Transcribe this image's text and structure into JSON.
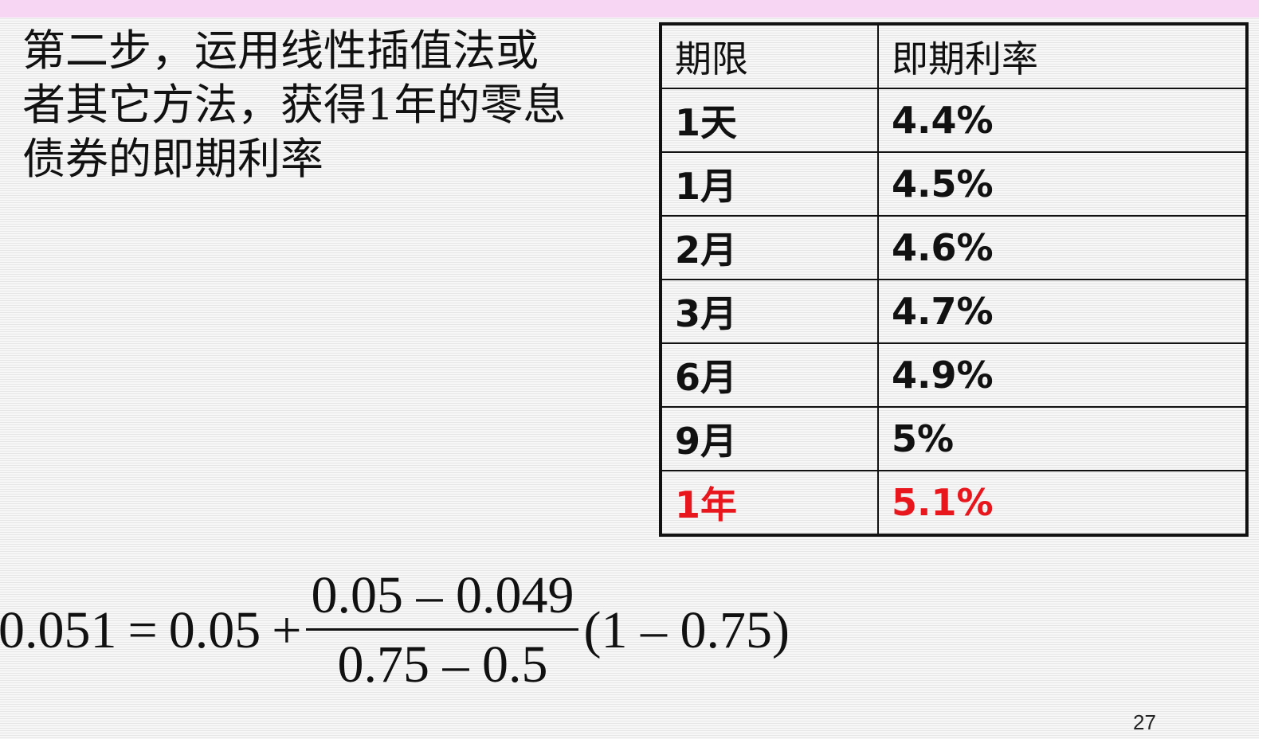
{
  "slide": {
    "intro_text": "第二步，运用线性插值法或\n者其它方法，获得1年的零息\n债券的即期利率",
    "page_number": "27"
  },
  "table": {
    "headers": [
      "期限",
      "即期利率"
    ],
    "rows": [
      [
        "1天",
        "4.4%"
      ],
      [
        "1月",
        "4.5%"
      ],
      [
        "2月",
        "4.6%"
      ],
      [
        "3月",
        "4.7%"
      ],
      [
        "6月",
        "4.9%"
      ],
      [
        "9月",
        "5%"
      ],
      [
        "1年",
        "5.1%"
      ]
    ],
    "highlight_color": "#e8161d"
  },
  "formula": {
    "lhs": "0.051",
    "equals": "=",
    "base": "0.05",
    "plus": "+",
    "numerator": "0.05 – 0.049",
    "denominator": "0.75 – 0.5",
    "factor": "(1 – 0.75)"
  },
  "colors": {
    "top_band": "#f6d6f2",
    "text": "#111111"
  }
}
